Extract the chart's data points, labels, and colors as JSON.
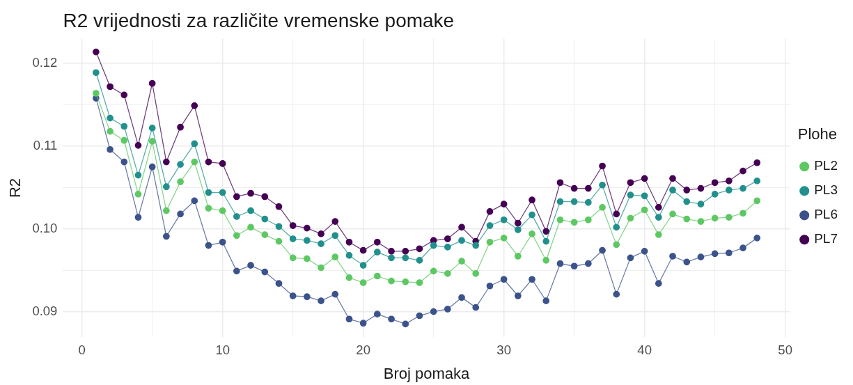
{
  "chart_data": {
    "type": "line",
    "title": "R2 vrijednosti za različite vremenske pomake",
    "xlabel": "Broj pomaka",
    "ylabel": "R2",
    "legend_title": "Plohe",
    "x": [
      1,
      2,
      3,
      4,
      5,
      6,
      7,
      8,
      9,
      10,
      11,
      12,
      13,
      14,
      15,
      16,
      17,
      18,
      19,
      20,
      21,
      22,
      23,
      24,
      25,
      26,
      27,
      28,
      29,
      30,
      31,
      32,
      33,
      34,
      35,
      36,
      37,
      38,
      39,
      40,
      41,
      42,
      43,
      44,
      45,
      46,
      47,
      48
    ],
    "series": [
      {
        "name": "PL2",
        "color": "#5dc863",
        "values": [
          0.1164,
          0.1118,
          0.1107,
          0.1042,
          0.1106,
          0.1022,
          0.1057,
          0.1081,
          0.1025,
          0.1022,
          0.0992,
          0.1002,
          0.0993,
          0.0985,
          0.0965,
          0.0964,
          0.0953,
          0.0966,
          0.0941,
          0.0935,
          0.0943,
          0.0937,
          0.0936,
          0.0935,
          0.0949,
          0.0946,
          0.0961,
          0.0946,
          0.0984,
          0.0989,
          0.0967,
          0.0994,
          0.0962,
          0.1011,
          0.1008,
          0.1011,
          0.1026,
          0.0981,
          0.1013,
          0.1023,
          0.0993,
          0.1018,
          0.1012,
          0.1009,
          0.1013,
          0.1014,
          0.1019,
          0.1034
        ]
      },
      {
        "name": "PL3",
        "color": "#21908c",
        "values": [
          0.1189,
          0.1134,
          0.1124,
          0.1065,
          0.1122,
          0.1051,
          0.1078,
          0.1103,
          0.1044,
          0.1044,
          0.1015,
          0.1022,
          0.1012,
          0.1003,
          0.0988,
          0.0986,
          0.0982,
          0.0992,
          0.0968,
          0.0956,
          0.0972,
          0.0965,
          0.0965,
          0.0962,
          0.098,
          0.0978,
          0.0986,
          0.098,
          0.1004,
          0.1011,
          0.0999,
          0.1017,
          0.0985,
          0.1033,
          0.1033,
          0.1032,
          0.1053,
          0.1002,
          0.1041,
          0.104,
          0.1014,
          0.1047,
          0.1033,
          0.103,
          0.1042,
          0.1047,
          0.1049,
          0.1058
        ]
      },
      {
        "name": "PL6",
        "color": "#3b528b",
        "values": [
          0.1158,
          0.1096,
          0.1081,
          0.1014,
          0.1075,
          0.0991,
          0.1018,
          0.1034,
          0.098,
          0.0984,
          0.0949,
          0.0956,
          0.0948,
          0.0934,
          0.0919,
          0.0918,
          0.0913,
          0.0921,
          0.0891,
          0.0886,
          0.0897,
          0.0891,
          0.0885,
          0.0895,
          0.09,
          0.0903,
          0.0917,
          0.0905,
          0.0931,
          0.0939,
          0.0919,
          0.0939,
          0.0913,
          0.0958,
          0.0955,
          0.0958,
          0.0974,
          0.0921,
          0.0965,
          0.0973,
          0.0934,
          0.0967,
          0.096,
          0.0966,
          0.097,
          0.0971,
          0.0977,
          0.0989
        ]
      },
      {
        "name": "PL7",
        "color": "#440154",
        "values": [
          0.1214,
          0.1172,
          0.1162,
          0.1101,
          0.1176,
          0.1081,
          0.1123,
          0.1149,
          0.1081,
          0.1079,
          0.1039,
          0.1043,
          0.1039,
          0.1027,
          0.1004,
          0.1001,
          0.0994,
          0.1009,
          0.0984,
          0.0974,
          0.0984,
          0.0973,
          0.0973,
          0.0976,
          0.0986,
          0.0988,
          0.1002,
          0.0985,
          0.1021,
          0.103,
          0.1007,
          0.1035,
          0.0997,
          0.1056,
          0.1049,
          0.1049,
          0.1076,
          0.1018,
          0.1056,
          0.1061,
          0.1026,
          0.1061,
          0.1047,
          0.1049,
          0.1056,
          0.1058,
          0.107,
          0.108
        ]
      }
    ],
    "xlim": [
      -1.35,
      50.35
    ],
    "ylim": [
      0.0869,
      0.123
    ],
    "xticks": [
      0,
      {
        "value": 5,
        "label": null
      },
      10,
      {
        "value": 15,
        "label": null
      },
      20,
      {
        "value": 25,
        "label": null
      },
      30,
      {
        "value": 35,
        "label": null
      },
      40,
      {
        "value": 45,
        "label": null
      },
      50
    ],
    "yticks": [
      0.09,
      {
        "value": 0.095,
        "label": null
      },
      {
        "value": 0.1,
        "label": "0.10"
      },
      {
        "value": 0.105,
        "label": null
      },
      0.11,
      {
        "value": 0.115,
        "label": null
      },
      0.12
    ],
    "grid": true,
    "legend": "right",
    "marker": "circle",
    "line_style": "solid"
  }
}
